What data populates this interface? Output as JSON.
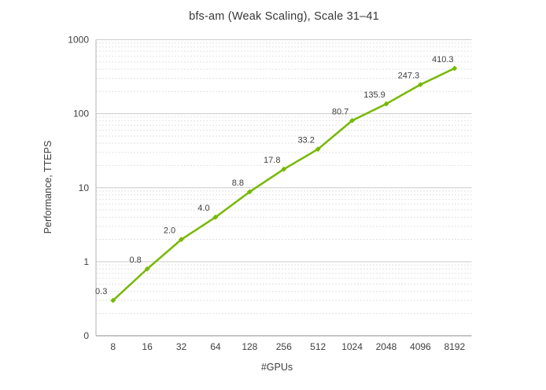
{
  "chart_data": {
    "type": "line",
    "title": "bfs-am (Weak Scaling), Scale 31–41",
    "xlabel": "#GPUs",
    "ylabel": "Performance, TTEPS",
    "categories": [
      "8",
      "16",
      "32",
      "64",
      "128",
      "256",
      "512",
      "1024",
      "2048",
      "4096",
      "8192"
    ],
    "series": [
      {
        "name": "bfs-am",
        "values": [
          0.3,
          0.8,
          2.0,
          4.0,
          8.8,
          17.8,
          33.2,
          80.7,
          135.9,
          247.3,
          410.3
        ],
        "point_labels": [
          "0.3",
          "0.8",
          "2.0",
          "4.0",
          "8.8",
          "17.8",
          "33.2",
          "80.7",
          "135.9",
          "247.3",
          "410.3"
        ]
      }
    ],
    "y_axis": {
      "scale": "log",
      "tick_labels": [
        "1000",
        "100",
        "10",
        "1",
        "0"
      ],
      "decades": 4
    },
    "grid": {
      "major": "solid",
      "minor": "dashed",
      "minor_steps": [
        2,
        3,
        4,
        5,
        6,
        7,
        8,
        9
      ]
    },
    "legend": "none",
    "colors": {
      "line": "#76B900",
      "marker": "#76B900",
      "grid_major": "#cccccc",
      "grid_minor": "#e2e2e2",
      "axis_left": "#b3b3b3",
      "axis_bottom": "#8c8c8c",
      "text": "#404040"
    }
  }
}
